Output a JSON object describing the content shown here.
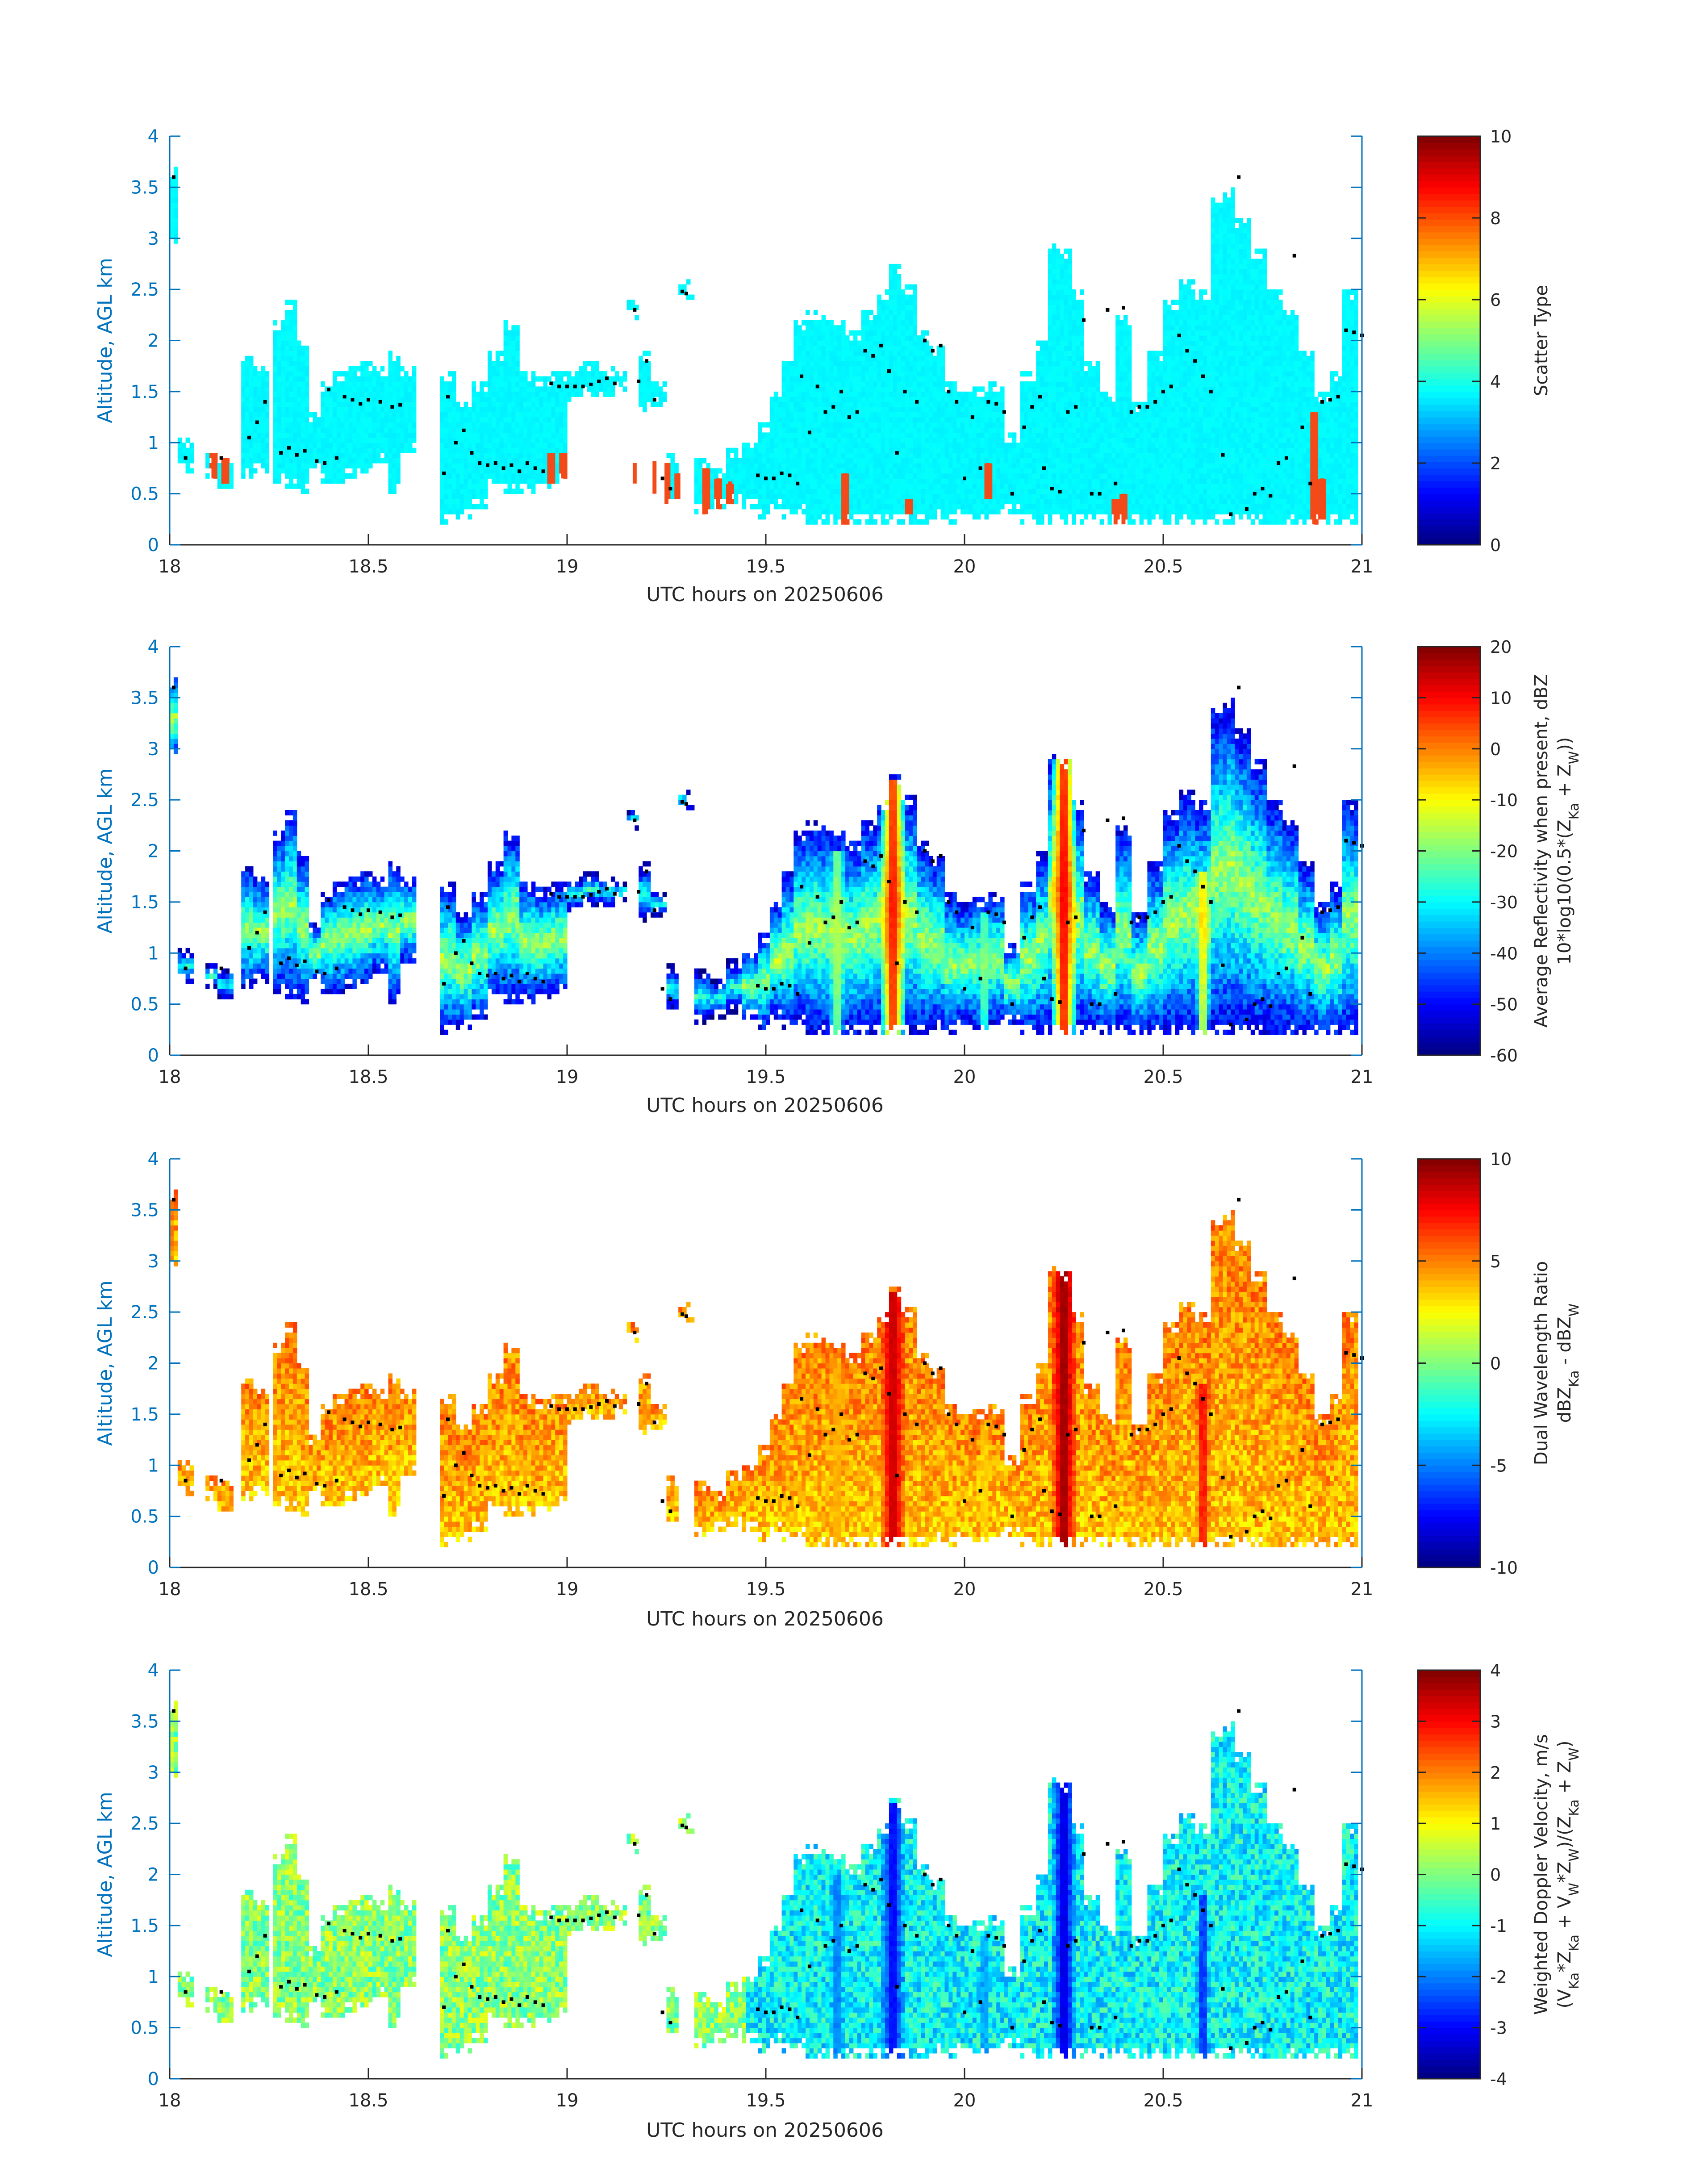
{
  "figure": {
    "xlabel": "UTC hours on 20250606",
    "ylabel": "Altitude, AGL km"
  },
  "chart_data": [
    {
      "type": "heatmap",
      "xlabel": "UTC hours on 20250606",
      "ylabel": "Altitude, AGL km",
      "xlim": [
        18,
        21
      ],
      "ylim": [
        0,
        4
      ],
      "xticks": [
        "18",
        "18.5",
        "19",
        "19.5",
        "20",
        "20.5",
        "21"
      ],
      "yticks": [
        "0",
        "0.5",
        "1",
        "1.5",
        "2",
        "2.5",
        "3",
        "3.5",
        "4"
      ],
      "colorbar": {
        "label_lines": [
          "Scatter Type"
        ],
        "clim": [
          0,
          10
        ],
        "ticks": [
          "0",
          "2",
          "4",
          "6",
          "8",
          "10"
        ],
        "colormap": "jet"
      },
      "fields": "scatter_type"
    },
    {
      "type": "heatmap",
      "xlabel": "UTC hours on 20250606",
      "ylabel": "Altitude, AGL km",
      "xlim": [
        18,
        21
      ],
      "ylim": [
        0,
        4
      ],
      "xticks": [
        "18",
        "18.5",
        "19",
        "19.5",
        "20",
        "20.5",
        "21"
      ],
      "yticks": [
        "0",
        "0.5",
        "1",
        "1.5",
        "2",
        "2.5",
        "3",
        "3.5",
        "4"
      ],
      "colorbar": {
        "label_lines": [
          "Average Reflectivity when present, dBZ",
          "10*log10(0.5*(Z_Ka + Z_W))"
        ],
        "clim": [
          -60,
          20
        ],
        "ticks": [
          "-60",
          "-50",
          "-40",
          "-30",
          "-20",
          "-10",
          "0",
          "10",
          "20"
        ],
        "colormap": "jet"
      },
      "fields": "reflectivity"
    },
    {
      "type": "heatmap",
      "xlabel": "UTC hours on 20250606",
      "ylabel": "Altitude, AGL km",
      "xlim": [
        18,
        21
      ],
      "ylim": [
        0,
        4
      ],
      "xticks": [
        "18",
        "18.5",
        "19",
        "19.5",
        "20",
        "20.5",
        "21"
      ],
      "yticks": [
        "0",
        "0.5",
        "1",
        "1.5",
        "2",
        "2.5",
        "3",
        "3.5",
        "4"
      ],
      "colorbar": {
        "label_lines": [
          "Dual Wavelength Ratio",
          "dBZ_Ka - dBZ_W"
        ],
        "clim": [
          -10,
          10
        ],
        "ticks": [
          "-10",
          "-5",
          "0",
          "5",
          "10"
        ],
        "colormap": "jet"
      },
      "fields": "dwr"
    },
    {
      "type": "heatmap",
      "xlabel": "UTC hours on 20250606",
      "ylabel": "Altitude, AGL km",
      "xlim": [
        18,
        21
      ],
      "ylim": [
        0,
        4
      ],
      "xticks": [
        "18",
        "18.5",
        "19",
        "19.5",
        "20",
        "20.5",
        "21"
      ],
      "yticks": [
        "0",
        "0.5",
        "1",
        "1.5",
        "2",
        "2.5",
        "3",
        "3.5",
        "4"
      ],
      "colorbar": {
        "label_lines": [
          "Weighted Doppler Velocity, m/s",
          "(V_Ka*Z_Ka + V_W*Z_W)/(Z_Ka + Z_W)"
        ],
        "clim": [
          -4,
          4
        ],
        "ticks": [
          "-4",
          "-3",
          "-2",
          "-1",
          "0",
          "1",
          "2",
          "3",
          "4"
        ],
        "colormap": "jet"
      },
      "fields": "velocity"
    }
  ],
  "cloud_columns": [
    {
      "t": 18.01,
      "bot": 2.9,
      "top": 3.7
    },
    {
      "t": 18.04,
      "bot": 0.7,
      "top": 1.05
    },
    {
      "t": 18.11,
      "bot": 0.65,
      "top": 0.9
    },
    {
      "t": 18.14,
      "bot": 0.55,
      "top": 0.85
    },
    {
      "t": 18.2,
      "bot": 0.65,
      "top": 1.85
    },
    {
      "t": 18.23,
      "bot": 0.7,
      "top": 1.75
    },
    {
      "t": 18.28,
      "bot": 0.6,
      "top": 2.2
    },
    {
      "t": 18.31,
      "bot": 0.55,
      "top": 2.4
    },
    {
      "t": 18.34,
      "bot": 0.5,
      "top": 2.0
    },
    {
      "t": 18.37,
      "bot": 0.7,
      "top": 1.3
    },
    {
      "t": 18.4,
      "bot": 0.6,
      "top": 1.6
    },
    {
      "t": 18.43,
      "bot": 0.6,
      "top": 1.7
    },
    {
      "t": 18.46,
      "bot": 0.65,
      "top": 1.75
    },
    {
      "t": 18.5,
      "bot": 0.7,
      "top": 1.8
    },
    {
      "t": 18.53,
      "bot": 0.8,
      "top": 1.75
    },
    {
      "t": 18.57,
      "bot": 0.5,
      "top": 1.9
    },
    {
      "t": 18.6,
      "bot": 0.9,
      "top": 1.75
    },
    {
      "t": 18.7,
      "bot": 0.2,
      "top": 1.7
    },
    {
      "t": 18.74,
      "bot": 0.25,
      "top": 1.4
    },
    {
      "t": 18.78,
      "bot": 0.35,
      "top": 1.6
    },
    {
      "t": 18.82,
      "bot": 0.55,
      "top": 1.9
    },
    {
      "t": 18.86,
      "bot": 0.5,
      "top": 2.2
    },
    {
      "t": 18.9,
      "bot": 0.5,
      "top": 1.7
    },
    {
      "t": 18.94,
      "bot": 0.55,
      "top": 1.65
    },
    {
      "t": 18.98,
      "bot": 0.6,
      "top": 1.7
    },
    {
      "t": 19.02,
      "bot": 1.4,
      "top": 1.75
    },
    {
      "t": 19.06,
      "bot": 1.45,
      "top": 1.8
    },
    {
      "t": 19.1,
      "bot": 1.45,
      "top": 1.75
    },
    {
      "t": 19.14,
      "bot": 1.5,
      "top": 1.7
    },
    {
      "t": 19.16,
      "bot": 2.2,
      "top": 2.4
    },
    {
      "t": 19.2,
      "bot": 1.3,
      "top": 1.9
    },
    {
      "t": 19.23,
      "bot": 1.35,
      "top": 1.6
    },
    {
      "t": 19.27,
      "bot": 0.4,
      "top": 0.9
    },
    {
      "t": 19.3,
      "bot": 2.4,
      "top": 2.6
    },
    {
      "t": 19.34,
      "bot": 0.3,
      "top": 0.85
    },
    {
      "t": 19.38,
      "bot": 0.35,
      "top": 0.75
    },
    {
      "t": 19.42,
      "bot": 0.4,
      "top": 0.95
    },
    {
      "t": 19.46,
      "bot": 0.35,
      "top": 1.0
    },
    {
      "t": 19.5,
      "bot": 0.25,
      "top": 1.2
    },
    {
      "t": 19.53,
      "bot": 0.35,
      "top": 1.5
    },
    {
      "t": 19.56,
      "bot": 0.25,
      "top": 1.8
    },
    {
      "t": 19.59,
      "bot": 0.3,
      "top": 2.2
    },
    {
      "t": 19.62,
      "bot": 0.2,
      "top": 2.3
    },
    {
      "t": 19.65,
      "bot": 0.2,
      "top": 2.25
    },
    {
      "t": 19.68,
      "bot": 0.2,
      "top": 2.2
    },
    {
      "t": 19.72,
      "bot": 0.2,
      "top": 2.1
    },
    {
      "t": 19.76,
      "bot": 0.2,
      "top": 2.3
    },
    {
      "t": 19.8,
      "bot": 0.2,
      "top": 2.5
    },
    {
      "t": 19.83,
      "bot": 0.2,
      "top": 2.75
    },
    {
      "t": 19.86,
      "bot": 0.2,
      "top": 2.55
    },
    {
      "t": 19.9,
      "bot": 0.2,
      "top": 2.1
    },
    {
      "t": 19.93,
      "bot": 0.25,
      "top": 1.95
    },
    {
      "t": 19.97,
      "bot": 0.2,
      "top": 1.6
    },
    {
      "t": 20.0,
      "bot": 0.3,
      "top": 1.5
    },
    {
      "t": 20.04,
      "bot": 0.25,
      "top": 1.55
    },
    {
      "t": 20.08,
      "bot": 0.3,
      "top": 1.6
    },
    {
      "t": 20.12,
      "bot": 0.3,
      "top": 1.1
    },
    {
      "t": 20.16,
      "bot": 0.2,
      "top": 1.7
    },
    {
      "t": 20.2,
      "bot": 0.2,
      "top": 2.0
    },
    {
      "t": 20.23,
      "bot": 0.2,
      "top": 2.95
    },
    {
      "t": 20.26,
      "bot": 0.2,
      "top": 2.9
    },
    {
      "t": 20.29,
      "bot": 0.2,
      "top": 2.5
    },
    {
      "t": 20.32,
      "bot": 0.25,
      "top": 1.8
    },
    {
      "t": 20.36,
      "bot": 0.2,
      "top": 1.5
    },
    {
      "t": 20.4,
      "bot": 0.2,
      "top": 2.25
    },
    {
      "t": 20.44,
      "bot": 0.2,
      "top": 1.4
    },
    {
      "t": 20.48,
      "bot": 0.2,
      "top": 1.9
    },
    {
      "t": 20.52,
      "bot": 0.2,
      "top": 2.4
    },
    {
      "t": 20.56,
      "bot": 0.2,
      "top": 2.6
    },
    {
      "t": 20.6,
      "bot": 0.2,
      "top": 2.5
    },
    {
      "t": 20.64,
      "bot": 0.2,
      "top": 3.4
    },
    {
      "t": 20.67,
      "bot": 0.2,
      "top": 3.5
    },
    {
      "t": 20.7,
      "bot": 0.2,
      "top": 3.2
    },
    {
      "t": 20.74,
      "bot": 0.2,
      "top": 2.9
    },
    {
      "t": 20.78,
      "bot": 0.2,
      "top": 2.5
    },
    {
      "t": 20.82,
      "bot": 0.2,
      "top": 2.3
    },
    {
      "t": 20.86,
      "bot": 0.2,
      "top": 1.9
    },
    {
      "t": 20.9,
      "bot": 0.2,
      "top": 1.5
    },
    {
      "t": 20.94,
      "bot": 0.2,
      "top": 1.7
    },
    {
      "t": 20.97,
      "bot": 0.2,
      "top": 2.5
    }
  ],
  "cores": [
    {
      "t": 19.82,
      "width": 0.035,
      "top": 2.7,
      "refl": 12,
      "dwr": 9,
      "vel": -3.2
    },
    {
      "t": 20.25,
      "width": 0.035,
      "top": 2.9,
      "refl": 14,
      "dwr": 10,
      "vel": -3.5
    },
    {
      "t": 20.6,
      "width": 0.018,
      "top": 1.8,
      "refl": -5,
      "dwr": 8,
      "vel": -3.0
    },
    {
      "t": 19.68,
      "width": 0.02,
      "top": 2.0,
      "refl": -15,
      "dwr": 4,
      "vel": -2.2
    },
    {
      "t": 20.05,
      "width": 0.015,
      "top": 1.4,
      "refl": -20,
      "dwr": 3,
      "vel": -2.0
    }
  ],
  "scatter_type_10_cells": [
    {
      "t": 18.11,
      "bot": 0.65,
      "top": 0.88
    },
    {
      "t": 18.14,
      "bot": 0.6,
      "top": 0.85
    },
    {
      "t": 18.96,
      "bot": 0.6,
      "top": 0.88
    },
    {
      "t": 18.99,
      "bot": 0.65,
      "top": 0.9
    },
    {
      "t": 19.17,
      "bot": 0.6,
      "top": 0.8
    },
    {
      "t": 19.22,
      "bot": 0.5,
      "top": 0.82
    },
    {
      "t": 19.25,
      "bot": 0.4,
      "top": 0.8
    },
    {
      "t": 19.28,
      "bot": 0.45,
      "top": 0.7
    },
    {
      "t": 19.35,
      "bot": 0.3,
      "top": 0.75
    },
    {
      "t": 19.38,
      "bot": 0.35,
      "top": 0.65
    },
    {
      "t": 19.41,
      "bot": 0.4,
      "top": 0.62
    },
    {
      "t": 19.7,
      "bot": 0.2,
      "top": 0.7
    },
    {
      "t": 19.86,
      "bot": 0.3,
      "top": 0.45
    },
    {
      "t": 20.06,
      "bot": 0.45,
      "top": 0.8
    },
    {
      "t": 20.38,
      "bot": 0.2,
      "top": 0.45
    },
    {
      "t": 20.4,
      "bot": 0.2,
      "top": 0.5
    },
    {
      "t": 20.88,
      "bot": 0.2,
      "top": 1.3
    },
    {
      "t": 20.9,
      "bot": 0.25,
      "top": 0.65
    }
  ],
  "top_marker_points": [
    {
      "t": 18.01,
      "alt": 3.6
    },
    {
      "t": 18.04,
      "alt": 0.85
    },
    {
      "t": 18.13,
      "alt": 0.85
    },
    {
      "t": 18.2,
      "alt": 1.05
    },
    {
      "t": 18.22,
      "alt": 1.2
    },
    {
      "t": 18.24,
      "alt": 1.4
    },
    {
      "t": 18.28,
      "alt": 0.9
    },
    {
      "t": 18.3,
      "alt": 0.95
    },
    {
      "t": 18.32,
      "alt": 0.88
    },
    {
      "t": 18.34,
      "alt": 0.92
    },
    {
      "t": 18.37,
      "alt": 0.82
    },
    {
      "t": 18.39,
      "alt": 0.8
    },
    {
      "t": 18.4,
      "alt": 1.52
    },
    {
      "t": 18.42,
      "alt": 0.85
    },
    {
      "t": 18.44,
      "alt": 1.45
    },
    {
      "t": 18.46,
      "alt": 1.42
    },
    {
      "t": 18.48,
      "alt": 1.38
    },
    {
      "t": 18.5,
      "alt": 1.42
    },
    {
      "t": 18.53,
      "alt": 1.4
    },
    {
      "t": 18.56,
      "alt": 1.35
    },
    {
      "t": 18.58,
      "alt": 1.37
    },
    {
      "t": 18.69,
      "alt": 0.7
    },
    {
      "t": 18.7,
      "alt": 1.45
    },
    {
      "t": 18.72,
      "alt": 1.0
    },
    {
      "t": 18.74,
      "alt": 1.12
    },
    {
      "t": 18.76,
      "alt": 0.9
    },
    {
      "t": 18.78,
      "alt": 0.8
    },
    {
      "t": 18.8,
      "alt": 0.78
    },
    {
      "t": 18.82,
      "alt": 0.8
    },
    {
      "t": 18.84,
      "alt": 0.75
    },
    {
      "t": 18.86,
      "alt": 0.78
    },
    {
      "t": 18.88,
      "alt": 0.72
    },
    {
      "t": 18.9,
      "alt": 0.8
    },
    {
      "t": 18.92,
      "alt": 0.75
    },
    {
      "t": 18.94,
      "alt": 0.72
    },
    {
      "t": 18.96,
      "alt": 1.58
    },
    {
      "t": 18.98,
      "alt": 1.55
    },
    {
      "t": 19.0,
      "alt": 1.55
    },
    {
      "t": 19.02,
      "alt": 1.55
    },
    {
      "t": 19.04,
      "alt": 1.55
    },
    {
      "t": 19.06,
      "alt": 1.57
    },
    {
      "t": 19.08,
      "alt": 1.6
    },
    {
      "t": 19.1,
      "alt": 1.63
    },
    {
      "t": 19.12,
      "alt": 1.58
    },
    {
      "t": 19.17,
      "alt": 2.3
    },
    {
      "t": 19.18,
      "alt": 1.6
    },
    {
      "t": 19.2,
      "alt": 1.8
    },
    {
      "t": 19.22,
      "alt": 1.42
    },
    {
      "t": 19.24,
      "alt": 0.65
    },
    {
      "t": 19.26,
      "alt": 0.55
    },
    {
      "t": 19.29,
      "alt": 2.48
    },
    {
      "t": 19.3,
      "alt": 2.46
    },
    {
      "t": 19.48,
      "alt": 0.68
    },
    {
      "t": 19.5,
      "alt": 0.65
    },
    {
      "t": 19.52,
      "alt": 0.65
    },
    {
      "t": 19.54,
      "alt": 0.7
    },
    {
      "t": 19.56,
      "alt": 0.68
    },
    {
      "t": 19.58,
      "alt": 0.6
    },
    {
      "t": 19.59,
      "alt": 1.65
    },
    {
      "t": 19.61,
      "alt": 1.1
    },
    {
      "t": 19.63,
      "alt": 1.55
    },
    {
      "t": 19.65,
      "alt": 1.3
    },
    {
      "t": 19.67,
      "alt": 1.35
    },
    {
      "t": 19.69,
      "alt": 1.5
    },
    {
      "t": 19.71,
      "alt": 1.25
    },
    {
      "t": 19.73,
      "alt": 1.3
    },
    {
      "t": 19.75,
      "alt": 1.9
    },
    {
      "t": 19.77,
      "alt": 1.85
    },
    {
      "t": 19.79,
      "alt": 1.95
    },
    {
      "t": 19.81,
      "alt": 1.7
    },
    {
      "t": 19.83,
      "alt": 0.9
    },
    {
      "t": 19.85,
      "alt": 1.5
    },
    {
      "t": 19.88,
      "alt": 1.4
    },
    {
      "t": 19.9,
      "alt": 2.0
    },
    {
      "t": 19.92,
      "alt": 1.9
    },
    {
      "t": 19.94,
      "alt": 1.95
    },
    {
      "t": 19.96,
      "alt": 1.5
    },
    {
      "t": 19.98,
      "alt": 1.4
    },
    {
      "t": 20.0,
      "alt": 0.65
    },
    {
      "t": 20.02,
      "alt": 1.25
    },
    {
      "t": 20.04,
      "alt": 0.75
    },
    {
      "t": 20.06,
      "alt": 1.4
    },
    {
      "t": 20.08,
      "alt": 1.38
    },
    {
      "t": 20.1,
      "alt": 1.3
    },
    {
      "t": 20.12,
      "alt": 0.5
    },
    {
      "t": 20.15,
      "alt": 1.15
    },
    {
      "t": 20.17,
      "alt": 1.35
    },
    {
      "t": 20.19,
      "alt": 1.45
    },
    {
      "t": 20.2,
      "alt": 0.75
    },
    {
      "t": 20.22,
      "alt": 0.55
    },
    {
      "t": 20.24,
      "alt": 0.52
    },
    {
      "t": 20.26,
      "alt": 1.3
    },
    {
      "t": 20.28,
      "alt": 1.35
    },
    {
      "t": 20.3,
      "alt": 2.2
    },
    {
      "t": 20.32,
      "alt": 0.5
    },
    {
      "t": 20.34,
      "alt": 0.5
    },
    {
      "t": 20.36,
      "alt": 2.3
    },
    {
      "t": 20.38,
      "alt": 0.6
    },
    {
      "t": 20.4,
      "alt": 2.32
    },
    {
      "t": 20.42,
      "alt": 1.3
    },
    {
      "t": 20.44,
      "alt": 1.35
    },
    {
      "t": 20.46,
      "alt": 1.35
    },
    {
      "t": 20.48,
      "alt": 1.4
    },
    {
      "t": 20.5,
      "alt": 1.5
    },
    {
      "t": 20.52,
      "alt": 1.55
    },
    {
      "t": 20.54,
      "alt": 2.05
    },
    {
      "t": 20.56,
      "alt": 1.9
    },
    {
      "t": 20.58,
      "alt": 1.8
    },
    {
      "t": 20.6,
      "alt": 1.65
    },
    {
      "t": 20.62,
      "alt": 1.5
    },
    {
      "t": 20.65,
      "alt": 0.88
    },
    {
      "t": 20.67,
      "alt": 0.3
    },
    {
      "t": 20.69,
      "alt": 3.6
    },
    {
      "t": 20.71,
      "alt": 0.35
    },
    {
      "t": 20.73,
      "alt": 0.5
    },
    {
      "t": 20.75,
      "alt": 0.55
    },
    {
      "t": 20.77,
      "alt": 0.48
    },
    {
      "t": 20.79,
      "alt": 0.8
    },
    {
      "t": 20.81,
      "alt": 0.85
    },
    {
      "t": 20.83,
      "alt": 2.83
    },
    {
      "t": 20.85,
      "alt": 1.15
    },
    {
      "t": 20.87,
      "alt": 0.6
    },
    {
      "t": 20.9,
      "alt": 1.4
    },
    {
      "t": 20.92,
      "alt": 1.42
    },
    {
      "t": 20.94,
      "alt": 1.45
    },
    {
      "t": 20.96,
      "alt": 2.1
    },
    {
      "t": 20.98,
      "alt": 2.08
    },
    {
      "t": 21.0,
      "alt": 2.05
    }
  ]
}
